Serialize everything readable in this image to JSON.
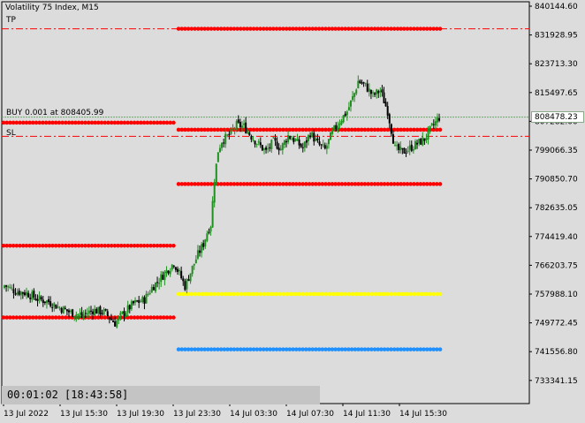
{
  "header": {
    "symbol_title": "Volatility 75 Index, M15"
  },
  "labels": {
    "tp": "TP",
    "sl": "SL",
    "position": "BUY 0.001 at 808405.99"
  },
  "timer": {
    "text": "00:01:02 [18:43:58]"
  },
  "price_badge": {
    "value": "808478.23",
    "color": "#2d8a2d"
  },
  "colors": {
    "background": "#dcdcdc",
    "bull_candle": "#1f8f1f",
    "bear_candle": "#000000",
    "level_red": "#ff0000",
    "level_yellow": "#ffff00",
    "level_blue": "#1e90ff",
    "dashdot_line": "#ff0000",
    "bid_line": "#6aa86a"
  },
  "chart_data": {
    "type": "candlestick",
    "title": "Volatility 75 Index, M15",
    "y_axis": {
      "ticks": [
        "840144.60",
        "831928.95",
        "823713.30",
        "815497.65",
        "807282.00",
        "799066.35",
        "790850.70",
        "782635.05",
        "774419.40",
        "766203.75",
        "757988.10",
        "749772.45",
        "741556.80",
        "733341.15"
      ],
      "ylim": [
        729000,
        842500
      ]
    },
    "x_axis": {
      "ticks": [
        "13 Jul 2022",
        "13 Jul 15:30",
        "13 Jul 19:30",
        "13 Jul 23:30",
        "14 Jul 03:30",
        "14 Jul 07:30",
        "14 Jul 11:30",
        "14 Jul 15:30"
      ]
    },
    "levels": {
      "tp_line": 833700,
      "sl_line": 803000,
      "position_price": 808405.99,
      "current_bid": 808478.23
    },
    "dotted_levels": [
      {
        "color": "red",
        "price": 833700,
        "segment": "right"
      },
      {
        "color": "red",
        "price": 806900,
        "segment": "left"
      },
      {
        "color": "red",
        "price": 804900,
        "segment": "right"
      },
      {
        "color": "red",
        "price": 789400,
        "segment": "right"
      },
      {
        "color": "red",
        "price": 771800,
        "segment": "left"
      },
      {
        "color": "yellow",
        "price": 758000,
        "segment": "right"
      },
      {
        "color": "red",
        "price": 751300,
        "segment": "left"
      },
      {
        "color": "blue",
        "price": 742200,
        "segment": "right"
      }
    ],
    "close_path": [
      [
        0,
        760500
      ],
      [
        6,
        758800
      ],
      [
        12,
        758300
      ],
      [
        18,
        756600
      ],
      [
        24,
        755800
      ],
      [
        30,
        754100
      ],
      [
        36,
        752700
      ],
      [
        42,
        751900
      ],
      [
        48,
        753400
      ],
      [
        54,
        752800
      ],
      [
        60,
        749700
      ],
      [
        64,
        752200
      ],
      [
        70,
        755200
      ],
      [
        76,
        756400
      ],
      [
        80,
        759800
      ],
      [
        84,
        762100
      ],
      [
        88,
        764600
      ],
      [
        92,
        766900
      ],
      [
        95,
        763800
      ],
      [
        98,
        760200
      ],
      [
        102,
        765500
      ],
      [
        105,
        769300
      ],
      [
        108,
        772300
      ],
      [
        110,
        775600
      ],
      [
        112,
        777800
      ],
      [
        114,
        790600
      ],
      [
        116,
        799000
      ],
      [
        118,
        801800
      ],
      [
        122,
        803300
      ],
      [
        126,
        806200
      ],
      [
        130,
        805800
      ],
      [
        134,
        803000
      ],
      [
        138,
        800700
      ],
      [
        142,
        798600
      ],
      [
        146,
        801500
      ],
      [
        150,
        799500
      ],
      [
        154,
        803200
      ],
      [
        158,
        801700
      ],
      [
        162,
        799600
      ],
      [
        166,
        804000
      ],
      [
        170,
        800900
      ],
      [
        174,
        799200
      ],
      [
        178,
        804100
      ],
      [
        182,
        807400
      ],
      [
        186,
        810100
      ],
      [
        190,
        815300
      ],
      [
        192,
        818800
      ],
      [
        196,
        817400
      ],
      [
        200,
        814600
      ],
      [
        204,
        816100
      ],
      [
        208,
        810200
      ],
      [
        212,
        799500
      ],
      [
        216,
        798500
      ],
      [
        220,
        799600
      ],
      [
        224,
        800900
      ],
      [
        228,
        802200
      ],
      [
        232,
        805600
      ],
      [
        236,
        808400
      ]
    ]
  }
}
